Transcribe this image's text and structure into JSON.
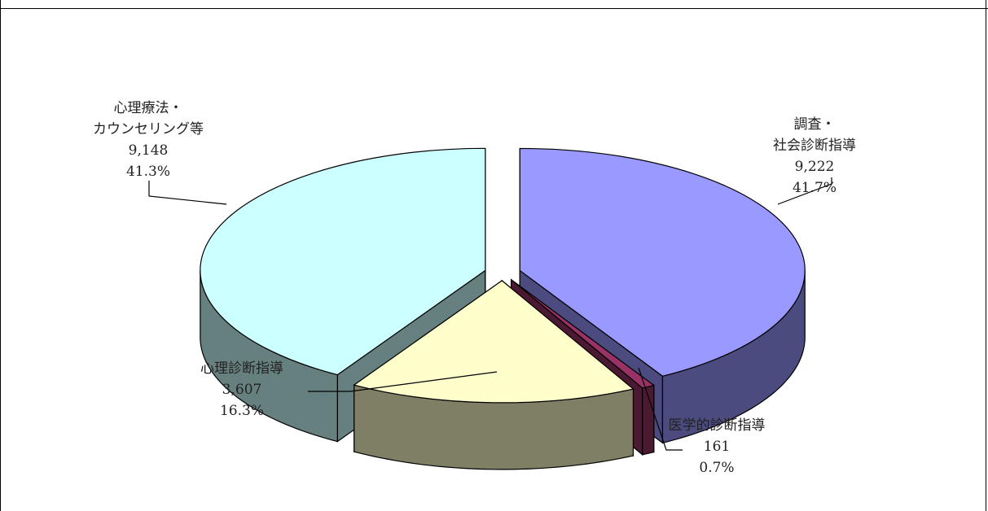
{
  "chart_data": {
    "type": "pie",
    "style": "3d-exploded",
    "title": "",
    "slices": [
      {
        "label": "調査・\n社会診断指導",
        "value": 9222,
        "value_label": "9,222",
        "percent_label": "41.7%",
        "color": "#9999ff",
        "side_color": "#4b4b7f"
      },
      {
        "label": "医学的診断指導",
        "value": 161,
        "value_label": "161",
        "percent_label": "0.7%",
        "color": "#993366",
        "side_color": "#4c1933"
      },
      {
        "label": "心理診断指導",
        "value": 3607,
        "value_label": "3,607",
        "percent_label": "16.3%",
        "color": "#ffffcc",
        "side_color": "#7f7f66"
      },
      {
        "label": "心理療法・\nカウンセリング等",
        "value": 9148,
        "value_label": "9,148",
        "percent_label": "41.3%",
        "color": "#ccffff",
        "side_color": "#667f7f"
      }
    ]
  }
}
